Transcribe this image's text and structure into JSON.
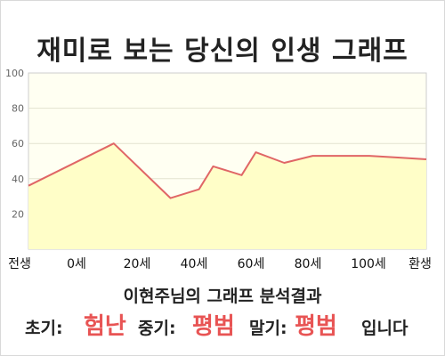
{
  "chart_data": {
    "type": "area",
    "title": "재미로 보는 당신의 인생 그래프",
    "subtitle": "이현주님의 그래프 분석결과",
    "x_tick_labels": [
      "전생",
      "0세",
      "20세",
      "40세",
      "60세",
      "80세",
      "100세",
      "환생"
    ],
    "y_ticks": [
      20,
      40,
      60,
      80,
      100
    ],
    "ylim": [
      0,
      100
    ],
    "grid": true,
    "series": [
      {
        "x": [
          -30,
          0,
          20,
          30,
          35,
          45,
          50,
          60,
          70,
          80,
          90,
          100,
          110
        ],
        "values": [
          36,
          60,
          29,
          34,
          47,
          42,
          55,
          49,
          53,
          53,
          53,
          52,
          51
        ]
      }
    ],
    "colors": {
      "line": "#e06666",
      "fill": "#fffec8",
      "plot_bg": "#fffff2",
      "accent": "#e85454"
    }
  },
  "result": {
    "early_label": "초기:",
    "early_value": "험난",
    "middle_label": "중기:",
    "middle_value": "평범",
    "late_label": "말기:",
    "late_value": "평범",
    "ending": "입니다"
  }
}
